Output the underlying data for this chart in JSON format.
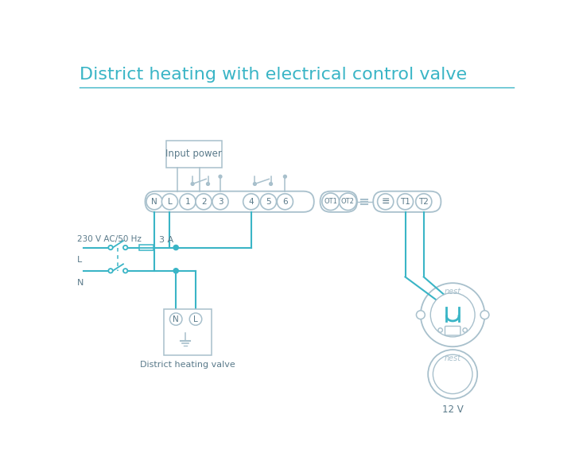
{
  "title": "District heating with electrical control valve",
  "title_color": "#3ab5c6",
  "title_fontsize": 16,
  "bg_color": "#ffffff",
  "wire_color": "#3ab5c6",
  "outline_color": "#a8c0cc",
  "text_color": "#5a7a8a",
  "terminal_labels": [
    "N",
    "L",
    "1",
    "2",
    "3",
    "4",
    "5",
    "6"
  ],
  "ot_labels": [
    "OT1",
    "OT2"
  ],
  "t_labels": [
    "T1",
    "T2"
  ]
}
